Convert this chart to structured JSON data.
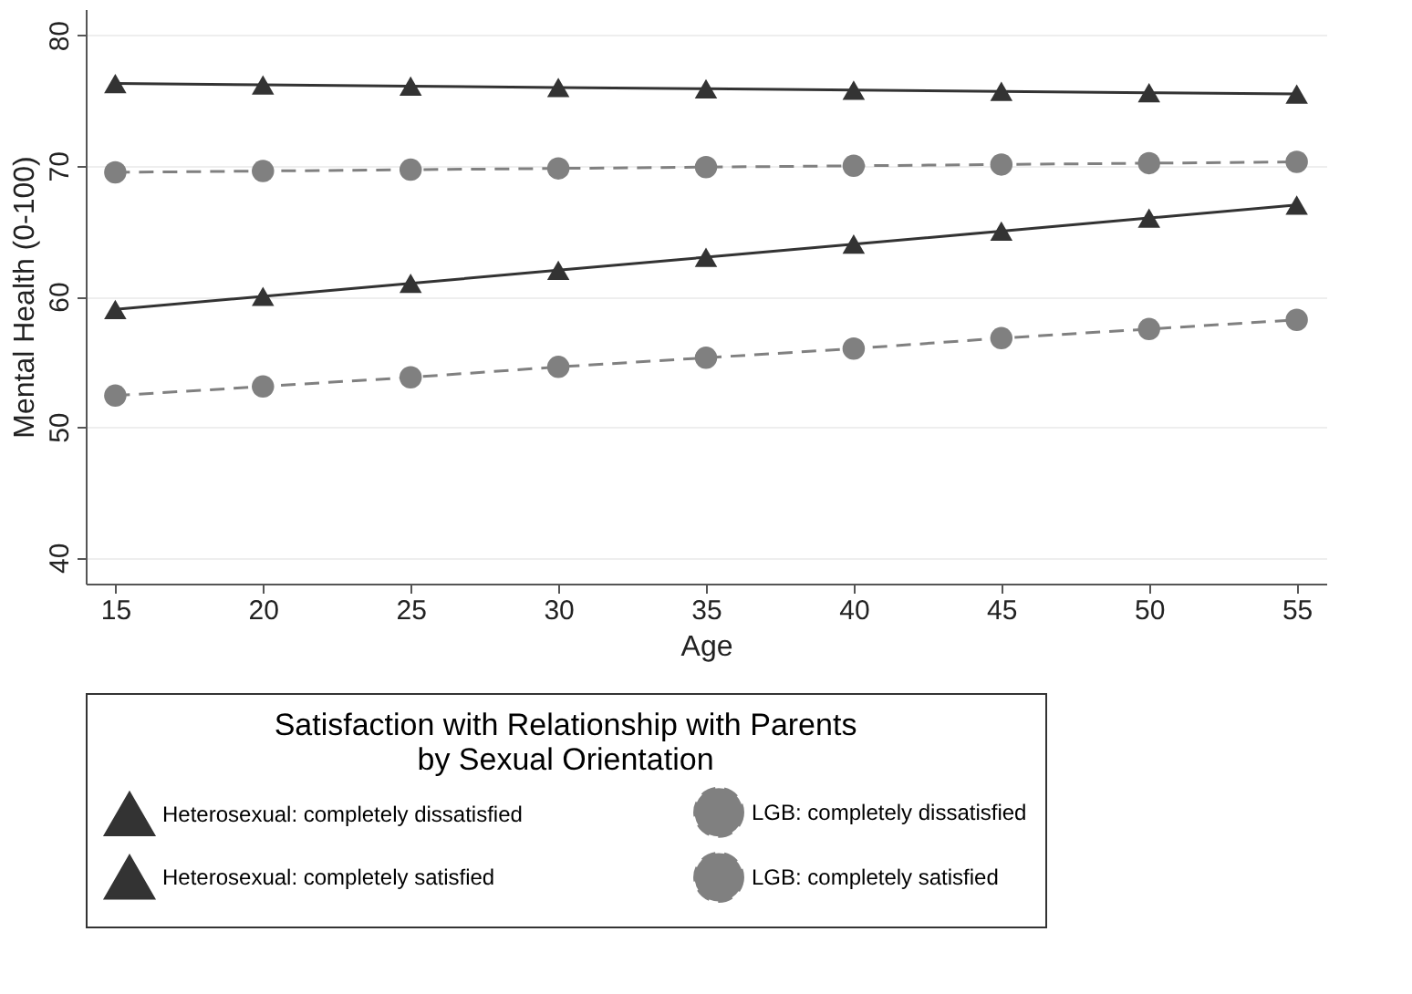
{
  "chart_data": {
    "type": "line",
    "xlabel": "Age",
    "ylabel": "Mental Health (0-100)",
    "legend_title": "Satisfaction with Relationship with Parents\nby Sexual Orientation",
    "x": [
      15,
      20,
      25,
      30,
      35,
      40,
      45,
      50,
      55
    ],
    "xlim": [
      14,
      56
    ],
    "xticks": [
      15,
      20,
      25,
      30,
      35,
      40,
      45,
      50,
      55
    ],
    "ylim": [
      38,
      82
    ],
    "yticks": [
      40,
      50,
      60,
      70,
      80
    ],
    "grid": "y",
    "legend": "bottom",
    "series": [
      {
        "name": "Heterosexual: completely dissatisfied",
        "color": "#333333",
        "marker": "triangle",
        "line_style": "solid",
        "values": [
          59,
          60,
          61,
          62,
          63,
          64,
          65,
          66,
          67
        ]
      },
      {
        "name": "LGB: completely dissatisfied",
        "color": "#808080",
        "marker": "circle",
        "line_style": "dashed",
        "values": [
          52.4,
          53.1,
          53.8,
          54.6,
          55.3,
          56.0,
          56.8,
          57.5,
          58.2
        ]
      },
      {
        "name": "Heterosexual: completely satisfied",
        "color": "#333333",
        "marker": "triangle",
        "line_style": "solid",
        "values": [
          76.3,
          76.2,
          76.1,
          76.0,
          75.9,
          75.8,
          75.7,
          75.6,
          75.5
        ]
      },
      {
        "name": "LGB: completely satisfied",
        "color": "#808080",
        "marker": "circle",
        "line_style": "dashed",
        "values": [
          69.5,
          69.6,
          69.7,
          69.8,
          69.9,
          70.0,
          70.1,
          70.2,
          70.3
        ]
      }
    ]
  }
}
